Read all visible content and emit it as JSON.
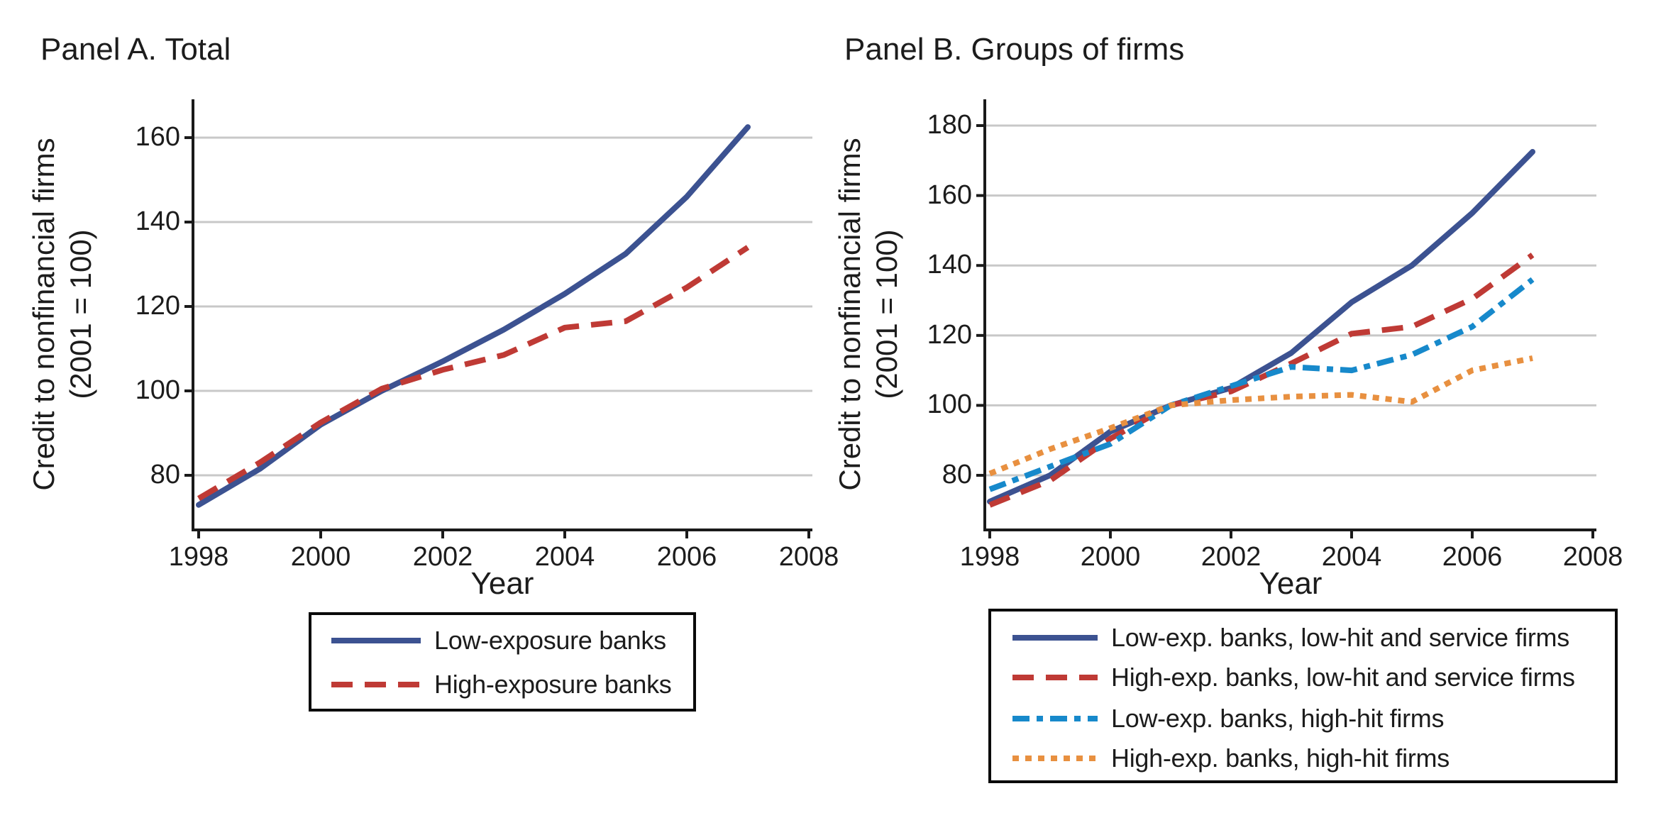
{
  "page": {
    "background": "#ffffff",
    "text_color": "#1c1c1c",
    "grid_color": "#c8c8c8",
    "axis_color": "#1a1a1a"
  },
  "chart_data": [
    {
      "id": "panel-a",
      "type": "line",
      "title": "Panel A. Total",
      "xlabel": "Year",
      "ylabel_line1": "Credit to nonfinancial firms",
      "ylabel_line2": "(2001 = 100)",
      "grid": true,
      "legend_position": "below",
      "x": [
        1998,
        1999,
        2000,
        2001,
        2002,
        2003,
        2004,
        2005,
        2006,
        2007
      ],
      "x_ticks": [
        1998,
        2000,
        2002,
        2004,
        2006,
        2008
      ],
      "y_ticks": [
        80,
        100,
        120,
        140,
        160
      ],
      "xlim": [
        1997.907,
        2008.058
      ],
      "ylim": [
        67.06,
        169.08
      ],
      "series": [
        {
          "name": "Low-exposure banks",
          "color": "#3c5291",
          "dash": "solid",
          "values": [
            73,
            81.5,
            92,
            100,
            107,
            114.5,
            123,
            132.5,
            146,
            162.5
          ]
        },
        {
          "name": "High-exposure banks",
          "color": "#bf3a35",
          "dash": "dashed",
          "values": [
            74.5,
            83,
            92.5,
            100.5,
            105,
            108.5,
            115,
            116.5,
            124.5,
            134
          ]
        }
      ]
    },
    {
      "id": "panel-b",
      "type": "line",
      "title": "Panel B. Groups of firms",
      "xlabel": "Year",
      "ylabel_line1": "Credit to nonfinancial firms",
      "ylabel_line2": "(2001 = 100)",
      "grid": true,
      "legend_position": "below",
      "x": [
        1998,
        1999,
        2000,
        2001,
        2002,
        2003,
        2004,
        2005,
        2006,
        2007
      ],
      "x_ticks": [
        1998,
        2000,
        2002,
        2004,
        2006,
        2008
      ],
      "y_ticks": [
        80,
        100,
        120,
        140,
        160,
        180
      ],
      "xlim": [
        1997.918,
        2008.059
      ],
      "ylim": [
        64.39,
        187.51
      ],
      "series": [
        {
          "name": "Low-exp. banks, low-hit and service firms",
          "color": "#3c5291",
          "dash": "solid",
          "values": [
            72.5,
            80,
            92.5,
            100,
            105,
            115,
            129.5,
            140,
            155,
            172.5
          ]
        },
        {
          "name": "High-exp. banks, low-hit and service firms",
          "color": "#bf3a35",
          "dash": "dashed",
          "values": [
            71.5,
            78.5,
            90.5,
            100,
            104,
            112,
            120.5,
            122.5,
            130.5,
            143
          ]
        },
        {
          "name": "Low-exp. banks, high-hit firms",
          "color": "#1789cb",
          "dash": "dashdot",
          "values": [
            76,
            82.5,
            89,
            100,
            105.5,
            111,
            110,
            114.5,
            122.5,
            136
          ]
        },
        {
          "name": "High-exp. banks, high-hit firms",
          "color": "#e89040",
          "dash": "dotted",
          "values": [
            80.5,
            87.5,
            93.5,
            100,
            101.5,
            102.5,
            103,
            101,
            110,
            113.5
          ]
        }
      ]
    }
  ]
}
